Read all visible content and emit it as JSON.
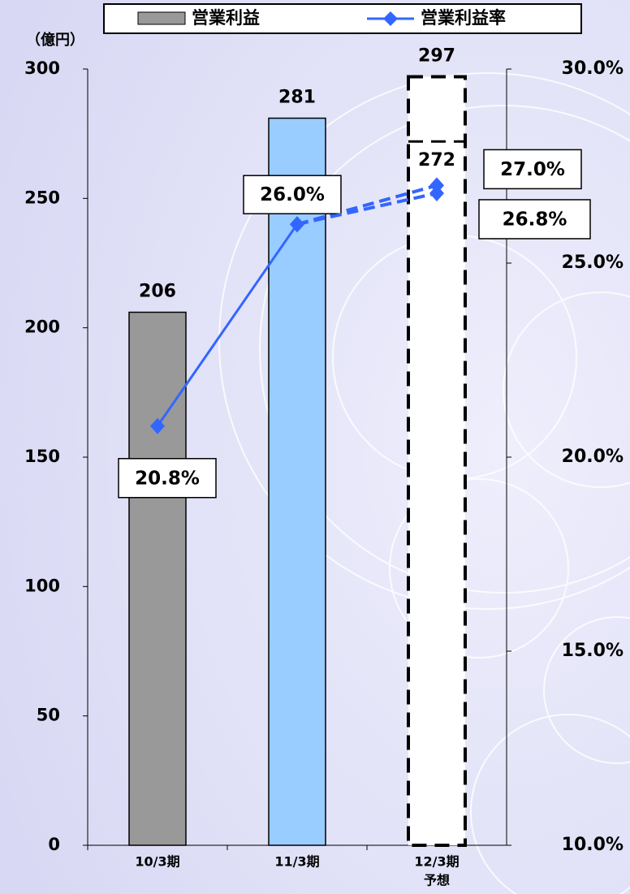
{
  "chart_data": {
    "type": "bar-line",
    "y_label": "（億円）",
    "categories": [
      "10/3期",
      "11/3期",
      "12/3期"
    ],
    "forecast_label": "予想",
    "ylim": [
      0,
      300
    ],
    "yticks": [
      0,
      50,
      100,
      150,
      200,
      250,
      300
    ],
    "y2lim": [
      10,
      30
    ],
    "y2ticks": [
      {
        "value": 10,
        "label": "10.0%"
      },
      {
        "value": 15,
        "label": "15.0%"
      },
      {
        "value": 20,
        "label": "20.0%"
      },
      {
        "value": 25,
        "label": "25.0%"
      },
      {
        "value": 30,
        "label": "30.0%"
      }
    ],
    "series": [
      {
        "name": "営業利益",
        "type": "bar",
        "color": "#999999",
        "colors": [
          "#999999",
          "#99ccff",
          "#ffffff"
        ],
        "values": [
          206,
          281,
          297
        ]
      },
      {
        "type": "bar",
        "values": [
          null,
          null,
          272
        ]
      },
      {
        "name": "営業利益率",
        "type": "line",
        "axis": "y2",
        "color": "#3366ff",
        "values": [
          20.8,
          26.0,
          27.0
        ],
        "value_labels": [
          "20.8%",
          "26.0%",
          "27.0%"
        ]
      },
      {
        "type": "line",
        "axis": "y2",
        "color": "#3366ff",
        "values": [
          null,
          26.0,
          26.8
        ],
        "value_labels": [
          null,
          null,
          "26.8%"
        ]
      }
    ]
  }
}
